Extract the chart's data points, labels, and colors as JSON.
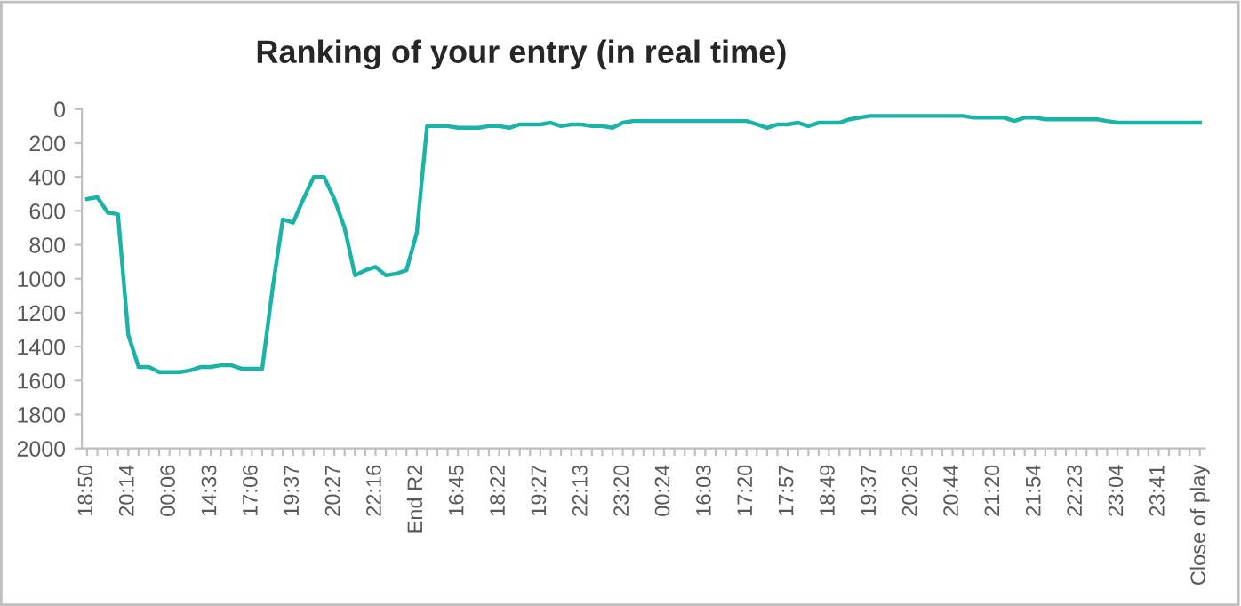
{
  "chart_data": {
    "type": "line",
    "title": "Ranking of your entry (in real time)",
    "categories": [
      "18:50",
      null,
      null,
      null,
      "20:14",
      null,
      null,
      null,
      "00:06",
      null,
      null,
      null,
      "14:33",
      null,
      null,
      null,
      "17:06",
      null,
      null,
      null,
      "19:37",
      null,
      null,
      null,
      "20:27",
      null,
      null,
      null,
      "22:16",
      null,
      null,
      null,
      "End R2",
      null,
      null,
      null,
      "16:45",
      null,
      null,
      null,
      "18:22",
      null,
      null,
      null,
      "19:27",
      null,
      null,
      null,
      "22:13",
      null,
      null,
      null,
      "23:20",
      null,
      null,
      null,
      "00:24",
      null,
      null,
      null,
      "16:03",
      null,
      null,
      null,
      "17:20",
      null,
      null,
      null,
      "17:57",
      null,
      null,
      null,
      "18:49",
      null,
      null,
      null,
      "19:37",
      null,
      null,
      null,
      "20:26",
      null,
      null,
      null,
      "20:44",
      null,
      null,
      null,
      "21:20",
      null,
      null,
      null,
      "21:54",
      null,
      null,
      null,
      "22:23",
      null,
      null,
      null,
      "23:04",
      null,
      null,
      null,
      "23:41",
      null,
      null,
      null,
      "Close of play"
    ],
    "series": [
      {
        "color": "#1ab3a8",
        "values": [
          530,
          520,
          610,
          620,
          1330,
          1520,
          1520,
          1550,
          1550,
          1550,
          1540,
          1520,
          1520,
          1510,
          1510,
          1530,
          1530,
          1530,
          1060,
          650,
          670,
          530,
          400,
          400,
          530,
          700,
          980,
          950,
          930,
          980,
          970,
          950,
          730,
          100,
          100,
          100,
          110,
          110,
          110,
          100,
          100,
          110,
          90,
          90,
          90,
          80,
          100,
          90,
          90,
          100,
          100,
          110,
          80,
          70,
          70,
          70,
          70,
          70,
          70,
          70,
          70,
          70,
          70,
          70,
          70,
          90,
          110,
          90,
          90,
          80,
          100,
          80,
          80,
          80,
          60,
          50,
          40,
          40,
          40,
          40,
          40,
          40,
          40,
          40,
          40,
          40,
          50,
          50,
          50,
          50,
          70,
          50,
          50,
          60,
          60,
          60,
          60,
          60,
          60,
          70,
          80,
          80,
          80,
          80,
          80,
          80,
          80,
          80,
          80
        ]
      }
    ],
    "ylim": [
      2000,
      0
    ],
    "yticks": [
      0,
      200,
      400,
      600,
      800,
      1000,
      1200,
      1400,
      1600,
      1800,
      2000
    ],
    "grid": false,
    "marker": "none",
    "line_style": "solid"
  }
}
